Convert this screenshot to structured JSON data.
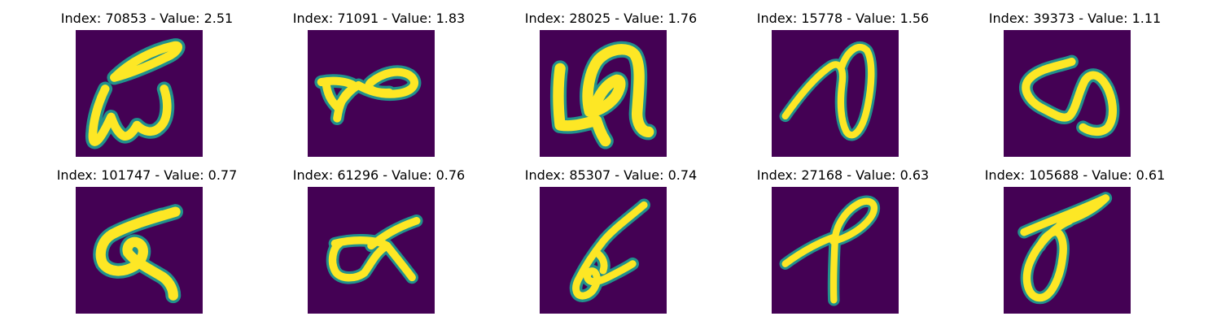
{
  "title_prefix_index": "Index",
  "title_prefix_value": "Value",
  "colors": {
    "background": "#440154",
    "stroke_outer": "#21918c",
    "stroke_mid": "#5ec962",
    "stroke_core": "#fde725"
  },
  "panels": [
    {
      "title": "Index: 70853 - Value: 2.51",
      "index": 70853,
      "value": 2.51
    },
    {
      "title": "Index: 71091 - Value: 1.83",
      "index": 71091,
      "value": 1.83
    },
    {
      "title": "Index: 28025 - Value: 1.76",
      "index": 28025,
      "value": 1.76
    },
    {
      "title": "Index: 15778 - Value: 1.56",
      "index": 15778,
      "value": 1.56
    },
    {
      "title": "Index: 39373 - Value: 1.11",
      "index": 39373,
      "value": 1.11
    },
    {
      "title": "Index: 101747 - Value: 0.77",
      "index": 101747,
      "value": 0.77
    },
    {
      "title": "Index: 61296 - Value: 0.76",
      "index": 61296,
      "value": 0.76
    },
    {
      "title": "Index: 85307 - Value: 0.74",
      "index": 85307,
      "value": 0.74
    },
    {
      "title": "Index: 27168 - Value: 0.63",
      "index": 27168,
      "value": 0.63
    },
    {
      "title": "Index: 105688 - Value: 0.61",
      "index": 105688,
      "value": 0.61
    }
  ]
}
